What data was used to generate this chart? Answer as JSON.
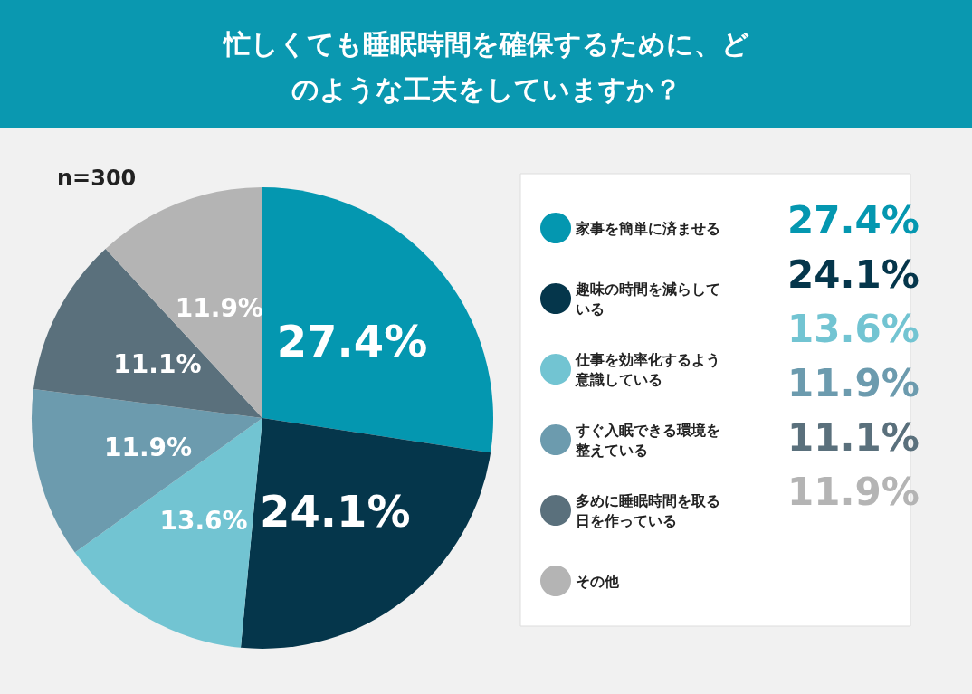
{
  "chart_data": {
    "type": "pie",
    "title": "忙しくても睡眠時間を確保するために、どのような工夫をしていますか？",
    "subtitle": "n=300",
    "categories": [
      "家事を簡単に済ませる",
      "趣味の時間を減らしている",
      "仕事を効率化するよう意識している",
      "すぐ入眠できる環境を整えている",
      "多めに睡眠時間を取る日を作っている",
      "その他"
    ],
    "values": [
      27.4,
      24.1,
      13.6,
      11.9,
      11.1,
      11.9
    ],
    "colors": [
      "#0497b0",
      "#05364b",
      "#72c4d2",
      "#6c9bae",
      "#5a707c",
      "#b4b4b4"
    ],
    "value_labels": [
      "27.4%",
      "24.1%",
      "13.6%",
      "11.9%",
      "11.1%",
      "11.9%"
    ],
    "legend": "right"
  }
}
